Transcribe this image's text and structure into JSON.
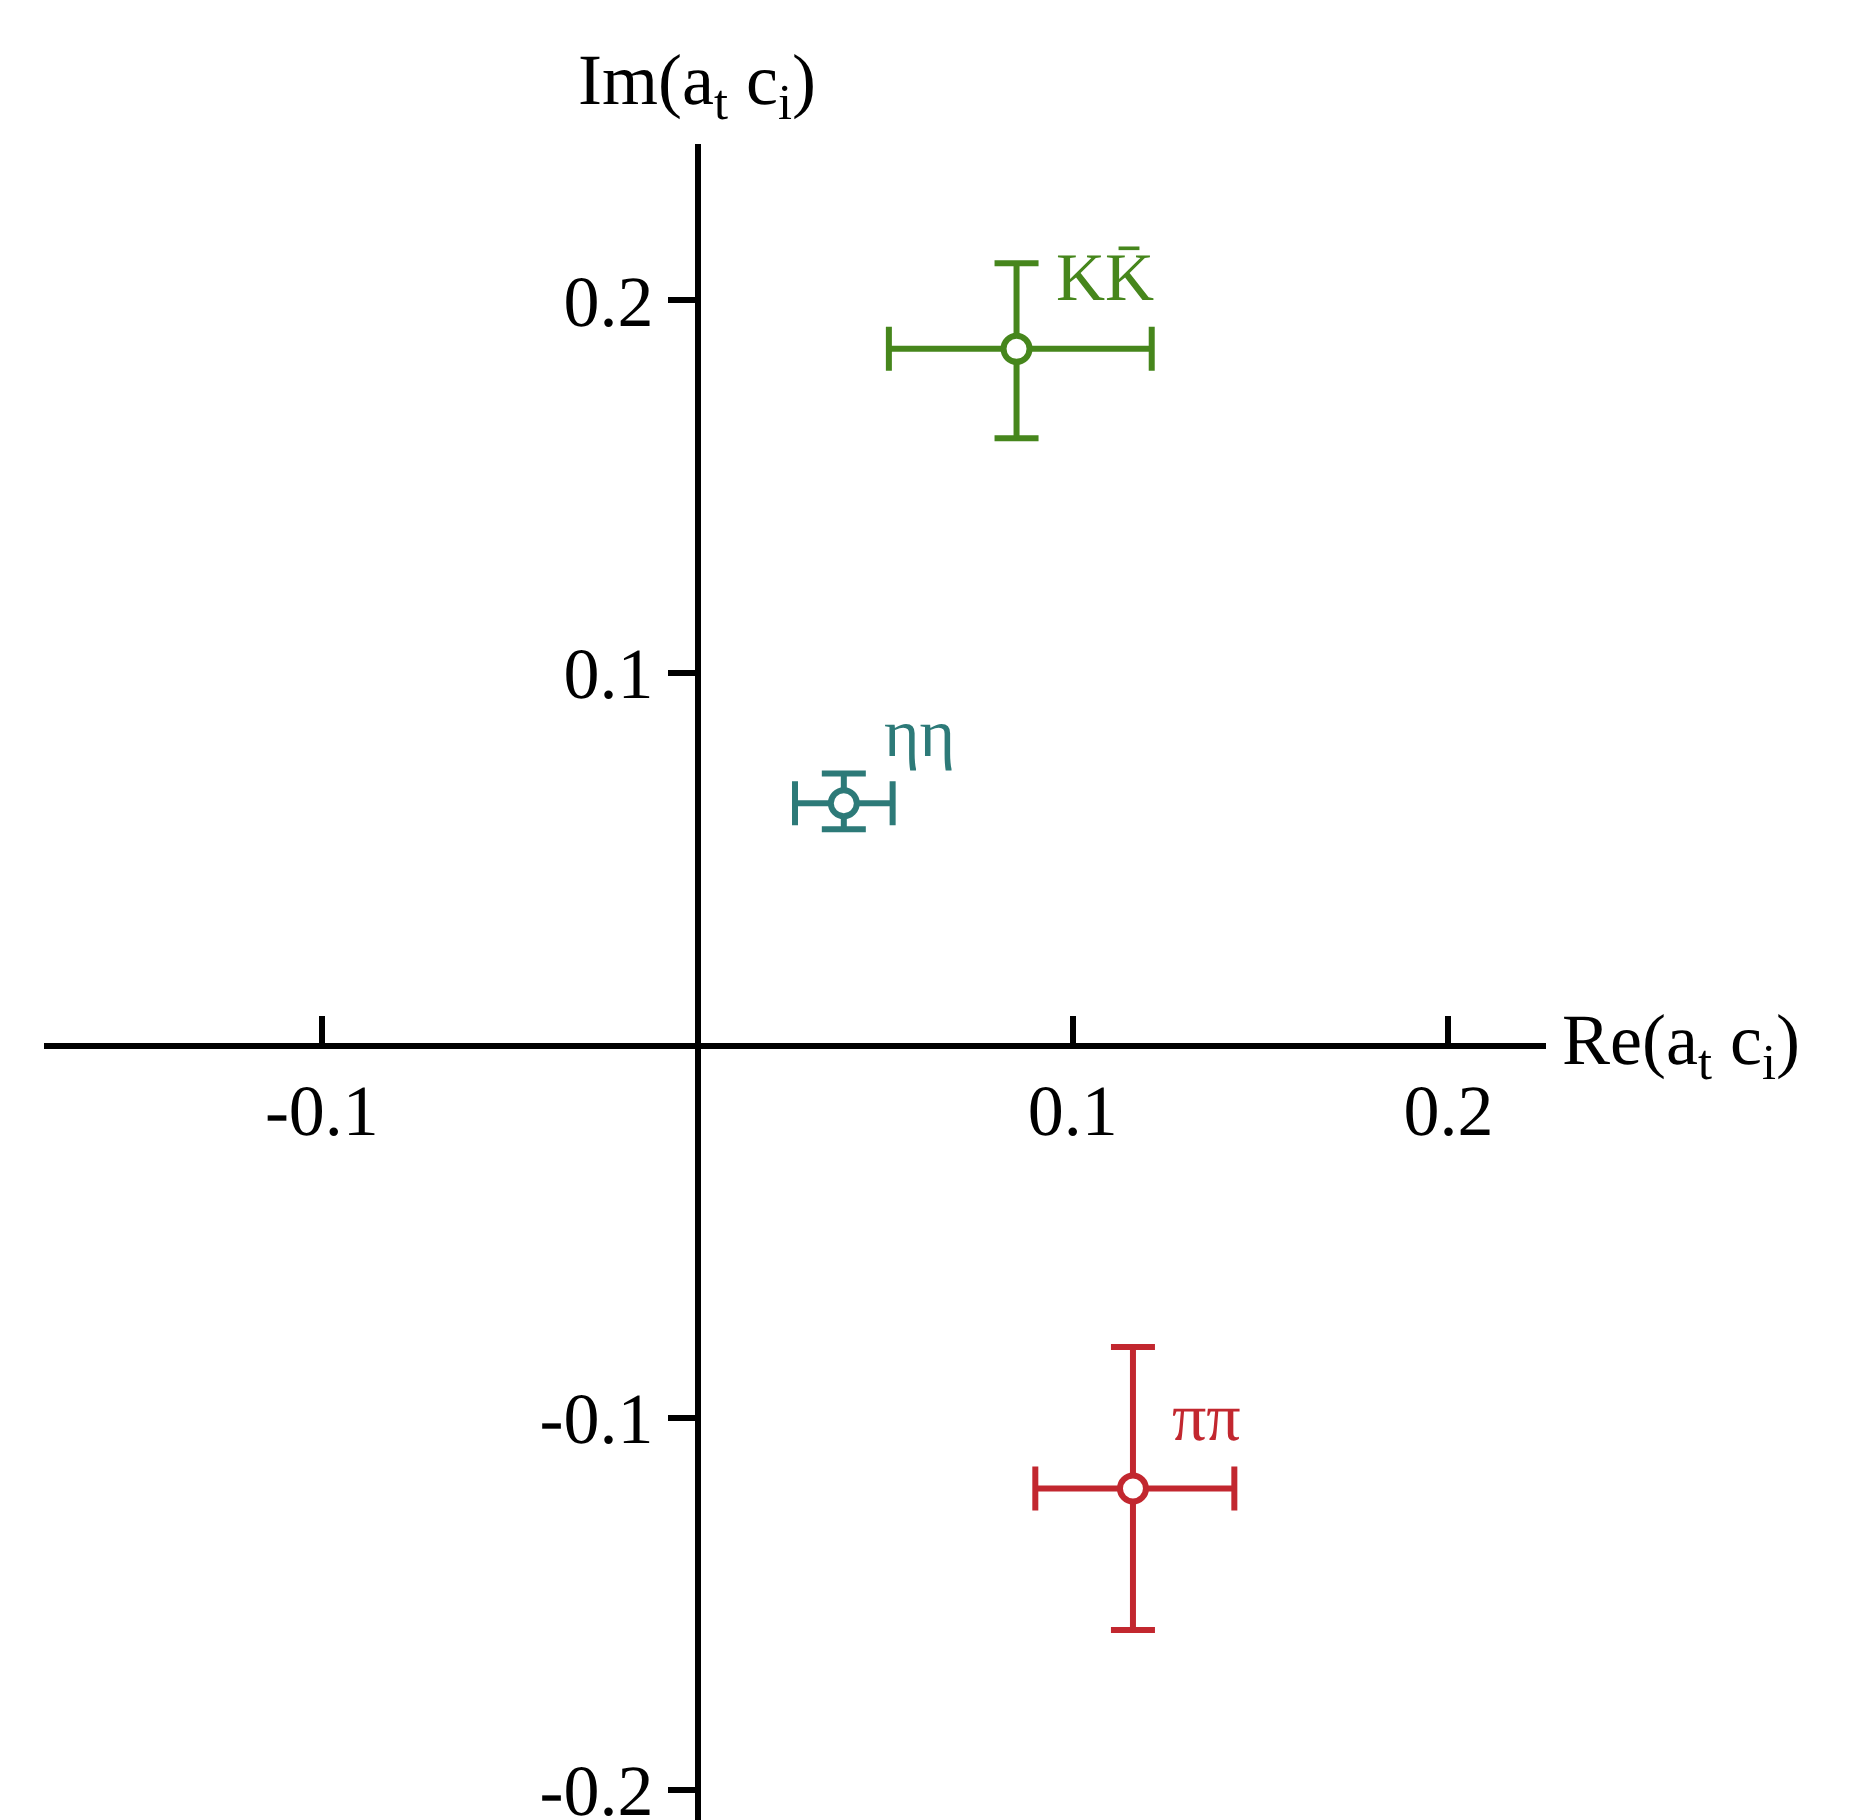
{
  "chart_data": {
    "type": "scatter",
    "xlabel": "Re(a$_{t}$ c$_{i}$)",
    "ylabel": "Im(a$_{t}$ c$_{i}$)",
    "xlim": [
      -0.174,
      0.226
    ],
    "ylim": [
      -0.208,
      0.242
    ],
    "xticks": [
      -0.1,
      0.1,
      0.2
    ],
    "yticks": [
      -0.2,
      -0.1,
      0.1,
      0.2
    ],
    "marker": "circle",
    "series": [
      {
        "name": "KK̄",
        "color": "#46861c",
        "x": [
          0.085
        ],
        "values": [
          0.187
        ],
        "xerrors": [
          [
            0.051,
            0.121
          ]
        ],
        "errors": [
          [
            0.163,
            0.21
          ]
        ]
      },
      {
        "name": "ηη",
        "color": "#2d7a78",
        "x": [
          0.039
        ],
        "values": [
          0.065
        ],
        "xerrors": [
          [
            0.026,
            0.052
          ]
        ],
        "errors": [
          [
            0.058,
            0.073
          ]
        ]
      },
      {
        "name": "ππ",
        "color": "#c2272f",
        "x": [
          0.116
        ],
        "values": [
          -0.119
        ],
        "xerrors": [
          [
            0.09,
            0.143
          ]
        ],
        "errors": [
          [
            -0.157,
            -0.081
          ]
        ]
      }
    ]
  }
}
